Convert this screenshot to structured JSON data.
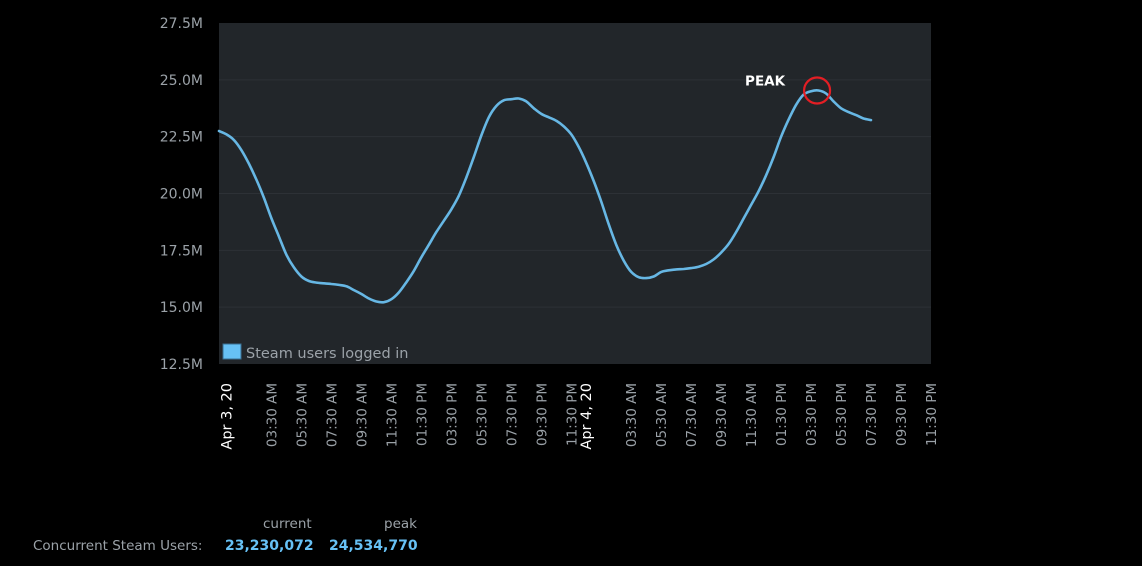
{
  "chart_data": {
    "type": "line",
    "y_axis": {
      "ticks": [
        "12.5M",
        "15.0M",
        "17.5M",
        "20.0M",
        "22.5M",
        "25.0M",
        "27.5M"
      ],
      "ylim": [
        12.5,
        27.5
      ],
      "unit": "M"
    },
    "x_axis": {
      "ticks": [
        {
          "label": "Apr 3, 20",
          "hour": 0.5,
          "day_marker": true
        },
        {
          "label": "03:30 AM",
          "hour": 3.5
        },
        {
          "label": "05:30 AM",
          "hour": 5.5
        },
        {
          "label": "07:30 AM",
          "hour": 7.5
        },
        {
          "label": "09:30 AM",
          "hour": 9.5
        },
        {
          "label": "11:30 AM",
          "hour": 11.5
        },
        {
          "label": "01:30 PM",
          "hour": 13.5
        },
        {
          "label": "03:30 PM",
          "hour": 15.5
        },
        {
          "label": "05:30 PM",
          "hour": 17.5
        },
        {
          "label": "07:30 PM",
          "hour": 19.5
        },
        {
          "label": "09:30 PM",
          "hour": 21.5
        },
        {
          "label": "11:30 PM",
          "hour": 23.5
        },
        {
          "label": "Apr 4, 20",
          "hour": 24.5,
          "day_marker": true
        },
        {
          "label": "03:30 AM",
          "hour": 27.5
        },
        {
          "label": "05:30 AM",
          "hour": 29.5
        },
        {
          "label": "07:30 AM",
          "hour": 31.5
        },
        {
          "label": "09:30 AM",
          "hour": 33.5
        },
        {
          "label": "11:30 AM",
          "hour": 35.5
        },
        {
          "label": "01:30 PM",
          "hour": 37.5
        },
        {
          "label": "03:30 PM",
          "hour": 39.5
        },
        {
          "label": "05:30 PM",
          "hour": 41.5
        },
        {
          "label": "07:30 PM",
          "hour": 43.5
        },
        {
          "label": "09:30 PM",
          "hour": 45.5
        },
        {
          "label": "11:30 PM",
          "hour": 47.5
        }
      ],
      "xlim": [
        0.0,
        47.5
      ]
    },
    "series": [
      {
        "name": "Steam users logged in",
        "color": "#67b7e4",
        "points": [
          [
            0.0,
            22.75
          ],
          [
            0.5,
            22.6
          ],
          [
            1.0,
            22.35
          ],
          [
            1.5,
            21.9
          ],
          [
            2.0,
            21.3
          ],
          [
            2.5,
            20.6
          ],
          [
            3.0,
            19.8
          ],
          [
            3.5,
            18.9
          ],
          [
            4.0,
            18.1
          ],
          [
            4.5,
            17.3
          ],
          [
            5.0,
            16.75
          ],
          [
            5.5,
            16.35
          ],
          [
            6.0,
            16.15
          ],
          [
            6.5,
            16.08
          ],
          [
            7.0,
            16.05
          ],
          [
            7.5,
            16.02
          ],
          [
            8.0,
            15.98
          ],
          [
            8.5,
            15.92
          ],
          [
            9.0,
            15.75
          ],
          [
            9.5,
            15.58
          ],
          [
            10.0,
            15.38
          ],
          [
            10.5,
            15.25
          ],
          [
            11.0,
            15.22
          ],
          [
            11.5,
            15.35
          ],
          [
            12.0,
            15.65
          ],
          [
            12.5,
            16.1
          ],
          [
            13.0,
            16.6
          ],
          [
            13.5,
            17.2
          ],
          [
            14.0,
            17.75
          ],
          [
            14.5,
            18.3
          ],
          [
            15.0,
            18.8
          ],
          [
            15.5,
            19.3
          ],
          [
            16.0,
            19.9
          ],
          [
            16.5,
            20.7
          ],
          [
            17.0,
            21.6
          ],
          [
            17.5,
            22.55
          ],
          [
            18.0,
            23.35
          ],
          [
            18.5,
            23.85
          ],
          [
            19.0,
            24.1
          ],
          [
            19.5,
            24.15
          ],
          [
            20.0,
            24.18
          ],
          [
            20.5,
            24.05
          ],
          [
            21.0,
            23.75
          ],
          [
            21.5,
            23.5
          ],
          [
            22.0,
            23.35
          ],
          [
            22.5,
            23.2
          ],
          [
            23.0,
            22.95
          ],
          [
            23.5,
            22.6
          ],
          [
            24.0,
            22.05
          ],
          [
            24.5,
            21.35
          ],
          [
            25.0,
            20.55
          ],
          [
            25.5,
            19.65
          ],
          [
            26.0,
            18.65
          ],
          [
            26.5,
            17.75
          ],
          [
            27.0,
            17.05
          ],
          [
            27.5,
            16.55
          ],
          [
            28.0,
            16.32
          ],
          [
            28.5,
            16.28
          ],
          [
            29.0,
            16.35
          ],
          [
            29.5,
            16.55
          ],
          [
            30.0,
            16.62
          ],
          [
            30.5,
            16.66
          ],
          [
            31.0,
            16.68
          ],
          [
            31.5,
            16.72
          ],
          [
            32.0,
            16.78
          ],
          [
            32.5,
            16.9
          ],
          [
            33.0,
            17.1
          ],
          [
            33.5,
            17.4
          ],
          [
            34.0,
            17.78
          ],
          [
            34.5,
            18.3
          ],
          [
            35.0,
            18.9
          ],
          [
            35.5,
            19.5
          ],
          [
            36.0,
            20.1
          ],
          [
            36.5,
            20.8
          ],
          [
            37.0,
            21.6
          ],
          [
            37.5,
            22.5
          ],
          [
            38.0,
            23.25
          ],
          [
            38.5,
            23.9
          ],
          [
            39.0,
            24.35
          ],
          [
            39.5,
            24.5
          ],
          [
            40.0,
            24.53
          ],
          [
            40.5,
            24.4
          ],
          [
            41.0,
            24.05
          ],
          [
            41.5,
            23.75
          ],
          [
            42.0,
            23.58
          ],
          [
            42.5,
            23.45
          ],
          [
            43.0,
            23.3
          ],
          [
            43.5,
            23.23
          ]
        ]
      }
    ],
    "peak_annotation": {
      "label": "PEAK",
      "x": 39.9,
      "y": 24.53
    },
    "legend": {
      "position": "bottom-left",
      "label": "Steam users logged in",
      "swatch_color": "#67c1f5"
    },
    "grid": true,
    "colors": {
      "plot_background": "#22262a",
      "grid": "#2d3136",
      "line": "#67b7e4",
      "peak_circle": "#e31e24"
    }
  },
  "stats": {
    "label": "Concurrent Steam Users:",
    "current_header": "current",
    "peak_header": "peak",
    "current_value": "23,230,072",
    "peak_value": "24,534,770"
  }
}
